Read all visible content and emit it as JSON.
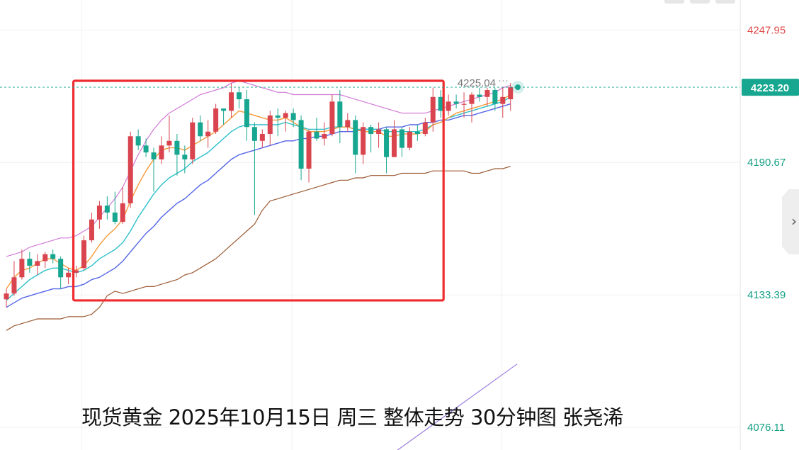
{
  "chart_data": {
    "type": "candlestick",
    "instrument": "现货黄金",
    "timeframe": "30分钟",
    "title": "现货黄金 2025年10月15日 周三 整体走势 30分钟图 张尧浠",
    "y_ticks": [
      "4247.95",
      "4190.67",
      "4133.39",
      "4076.11"
    ],
    "ylim": [
      4070.6,
      4254.8
    ],
    "last_price": "4223.20",
    "high_marker": "4225.04",
    "high_marker_suffix": "···",
    "candles": [
      [
        4131.5,
        4136,
        4128,
        4134
      ],
      [
        4134,
        4148,
        4133,
        4141
      ],
      [
        4141,
        4153,
        4140,
        4149
      ],
      [
        4149,
        4152,
        4143,
        4146
      ],
      [
        4146,
        4151,
        4142,
        4148
      ],
      [
        4148,
        4152,
        4145,
        4151
      ],
      [
        4151,
        4153,
        4147,
        4149
      ],
      [
        4149,
        4150,
        4136,
        4141
      ],
      [
        4141,
        4145,
        4138,
        4143
      ],
      [
        4143,
        4146,
        4141,
        4144
      ],
      [
        4145,
        4159,
        4144,
        4157
      ],
      [
        4157,
        4169,
        4156,
        4166
      ],
      [
        4166,
        4174,
        4162,
        4172
      ],
      [
        4172,
        4176,
        4166,
        4169
      ],
      [
        4169,
        4178,
        4164,
        4165
      ],
      [
        4165,
        4180,
        4164,
        4173
      ],
      [
        4173,
        4204,
        4171,
        4202
      ],
      [
        4202,
        4205,
        4196,
        4198
      ],
      [
        4198,
        4201,
        4193,
        4195
      ],
      [
        4195,
        4197,
        4178,
        4192
      ],
      [
        4192,
        4202,
        4190,
        4198
      ],
      [
        4198,
        4211,
        4195,
        4200
      ],
      [
        4200,
        4203,
        4185,
        4194
      ],
      [
        4194,
        4198,
        4186,
        4192
      ],
      [
        4192,
        4210,
        4190,
        4208
      ],
      [
        4208,
        4211,
        4200,
        4202
      ],
      [
        4202,
        4209,
        4197,
        4204
      ],
      [
        4204,
        4216,
        4203,
        4214
      ],
      [
        4214,
        4214,
        4207,
        4213
      ],
      [
        4213,
        4225,
        4210,
        4221
      ],
      [
        4221,
        4223,
        4214,
        4218
      ],
      [
        4218,
        4222,
        4200,
        4206
      ],
      [
        4206,
        4208,
        4168,
        4200
      ],
      [
        4200,
        4205,
        4197,
        4203
      ],
      [
        4203,
        4213,
        4198,
        4211
      ],
      [
        4211,
        4214,
        4202,
        4210
      ],
      [
        4210,
        4213,
        4204,
        4212
      ],
      [
        4212,
        4214,
        4206,
        4209
      ],
      [
        4209,
        4211,
        4183,
        4188
      ],
      [
        4188,
        4205,
        4182,
        4204
      ],
      [
        4204,
        4210,
        4200,
        4201
      ],
      [
        4201,
        4208,
        4198,
        4203
      ],
      [
        4203,
        4220,
        4202,
        4217
      ],
      [
        4217,
        4222,
        4199,
        4206
      ],
      [
        4206,
        4212,
        4204,
        4209
      ],
      [
        4209,
        4211,
        4186,
        4194
      ],
      [
        4194,
        4208,
        4190,
        4206
      ],
      [
        4206,
        4207,
        4195,
        4203
      ],
      [
        4203,
        4208,
        4197,
        4205
      ],
      [
        4205,
        4206,
        4186,
        4193
      ],
      [
        4193,
        4209,
        4193,
        4205
      ],
      [
        4205,
        4206,
        4193,
        4197
      ],
      [
        4197,
        4206,
        4196,
        4204
      ],
      [
        4204,
        4207,
        4200,
        4203
      ],
      [
        4203,
        4210,
        4202,
        4208
      ],
      [
        4208,
        4223,
        4204,
        4219
      ],
      [
        4219,
        4222,
        4210,
        4213
      ],
      [
        4213,
        4220,
        4211,
        4217
      ],
      [
        4217,
        4220,
        4214,
        4216
      ],
      [
        4216,
        4221,
        4210,
        4216
      ],
      [
        4216,
        4221,
        4208,
        4220
      ],
      [
        4220,
        4223,
        4217,
        4219
      ],
      [
        4219,
        4223,
        4215,
        4222
      ],
      [
        4222,
        4223,
        4213,
        4216
      ],
      [
        4216,
        4223,
        4210,
        4219
      ],
      [
        4218,
        4225.04,
        4213,
        4223.2
      ]
    ],
    "ma_fast": [
      4136,
      4141,
      4144,
      4145,
      4147,
      4149,
      4149,
      4147,
      4145,
      4144,
      4146,
      4150,
      4155,
      4159,
      4162,
      4166,
      4174,
      4181,
      4187,
      4192,
      4196,
      4197,
      4197,
      4196,
      4198,
      4200,
      4202,
      4204,
      4207,
      4210,
      4213,
      4212,
      4211,
      4210,
      4209,
      4209,
      4210,
      4208,
      4206,
      4204,
      4204,
      4204,
      4205,
      4206,
      4206,
      4205,
      4204,
      4204,
      4204,
      4202,
      4202,
      4203,
      4203,
      4203,
      4204,
      4207,
      4208,
      4210,
      4212,
      4213,
      4214,
      4215,
      4216,
      4217,
      4218,
      4220
    ],
    "ma_mid": [
      4131,
      4134,
      4137,
      4140,
      4142,
      4144,
      4145,
      4145,
      4144,
      4143,
      4144,
      4146,
      4149,
      4151,
      4153,
      4156,
      4161,
      4167,
      4172,
      4177,
      4181,
      4184,
      4186,
      4188,
      4191,
      4193,
      4195,
      4198,
      4201,
      4204,
      4206,
      4207,
      4207,
      4207,
      4207,
      4207,
      4208,
      4207,
      4206,
      4205,
      4205,
      4205,
      4206,
      4206,
      4206,
      4205,
      4205,
      4205,
      4205,
      4204,
      4204,
      4204,
      4204,
      4204,
      4205,
      4207,
      4208,
      4210,
      4211,
      4212,
      4213,
      4214,
      4215,
      4216,
      4217,
      4219
    ],
    "ma_slow": [
      4128,
      4130,
      4132,
      4133,
      4134,
      4135,
      4136,
      4136,
      4137,
      4137,
      4138,
      4140,
      4141,
      4143,
      4145,
      4148,
      4152,
      4156,
      4160,
      4163,
      4167,
      4170,
      4173,
      4175,
      4178,
      4181,
      4183,
      4186,
      4189,
      4192,
      4194,
      4195,
      4196,
      4197,
      4198,
      4199,
      4200,
      4200,
      4201,
      4201,
      4202,
      4202,
      4203,
      4204,
      4204,
      4204,
      4205,
      4205,
      4205,
      4206,
      4206,
      4206,
      4207,
      4207,
      4208,
      4208,
      4209,
      4209,
      4210,
      4211,
      4211,
      4212,
      4213,
      4214,
      4215,
      4216
    ],
    "band_upper": [
      4150,
      4151,
      4152,
      4154,
      4155,
      4156,
      4157,
      4158,
      4158,
      4159,
      4161,
      4163,
      4167,
      4171,
      4175,
      4180,
      4187,
      4194,
      4200,
      4205,
      4209,
      4212,
      4214,
      4216,
      4218,
      4220,
      4221,
      4222,
      4223,
      4225,
      4226,
      4225,
      4224,
      4223,
      4222,
      4221,
      4221,
      4220,
      4220,
      4220,
      4220,
      4220,
      4220,
      4220,
      4219,
      4218,
      4217,
      4216,
      4215,
      4214,
      4213,
      4212,
      4212,
      4212,
      4212,
      4213,
      4214,
      4215,
      4216,
      4217,
      4218,
      4219,
      4220,
      4221,
      4223,
      4224
    ],
    "band_lower": [
      4118,
      4120,
      4121,
      4122,
      4123,
      4123,
      4123,
      4123,
      4124,
      4124,
      4124,
      4125,
      4128,
      4133,
      4135,
      4134,
      4135,
      4136,
      4137,
      4137,
      4138,
      4139,
      4140,
      4142,
      4143,
      4145,
      4147,
      4149,
      4152,
      4155,
      4158,
      4161,
      4164,
      4170,
      4174,
      4175,
      4176,
      4177,
      4178,
      4179,
      4180,
      4181,
      4182,
      4183,
      4183,
      4184,
      4184,
      4185,
      4185,
      4185,
      4185,
      4186,
      4186,
      4186,
      4186,
      4187,
      4187,
      4187,
      4187,
      4187,
      4186,
      4186,
      4187,
      4188,
      4188,
      4189
    ],
    "ma_long_start": [
      4063,
      4066,
      4067
    ],
    "colors": {
      "up": "#d9444f",
      "down": "#17a68f",
      "ma_fast": "#f49a3a",
      "ma_mid": "#2cc0c9",
      "ma_slow": "#5466e6",
      "band_upper": "#d17ad6",
      "band_lower": "#9c5b35",
      "ma_long": "#9b7ee0",
      "box": "#ee2b2f",
      "price_label": "#17a68f",
      "tick_label": "#16a085",
      "top_tick_label": "#e04b4b"
    },
    "highlight_box": {
      "from_index": 9,
      "to_index": 56,
      "y_top": 4226,
      "y_bottom": 4131
    }
  },
  "ui": {
    "side_handle_icon": "chevron-right-icon",
    "side_handle_glyph": "›"
  }
}
